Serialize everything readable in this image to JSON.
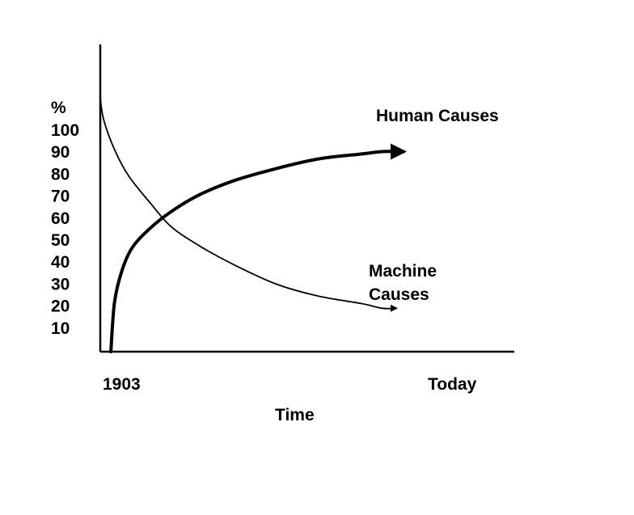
{
  "chart_data": {
    "type": "line",
    "ylabel": "%",
    "xlabel": "Time",
    "ylim": [
      0,
      110
    ],
    "xlim": [
      0,
      1
    ],
    "y_ticks": [
      "100",
      "90",
      "80",
      "70",
      "60",
      "50",
      "40",
      "30",
      "20",
      "10"
    ],
    "x_tick_labels": [
      "1903",
      "Today"
    ],
    "series": [
      {
        "name": "Human Causes",
        "label_lines": [
          "Human Causes"
        ],
        "stroke": "#000000",
        "x": [
          0.03,
          0.04,
          0.06,
          0.09,
          0.14,
          0.2,
          0.28,
          0.38,
          0.5,
          0.62,
          0.74,
          0.8,
          0.86
        ],
        "values": [
          0,
          20,
          33,
          43,
          51,
          58,
          65,
          71,
          76,
          80,
          82,
          83,
          83
        ]
      },
      {
        "name": "Machine Causes",
        "label_lines": [
          "Machine",
          "Causes"
        ],
        "stroke": "#000000",
        "x": [
          0.0,
          0.01,
          0.04,
          0.08,
          0.14,
          0.2,
          0.28,
          0.38,
          0.5,
          0.62,
          0.74,
          0.8,
          0.84
        ],
        "values": [
          105,
          96,
          84,
          73,
          62,
          52,
          44,
          36,
          28,
          23,
          20,
          18,
          18
        ]
      }
    ]
  }
}
